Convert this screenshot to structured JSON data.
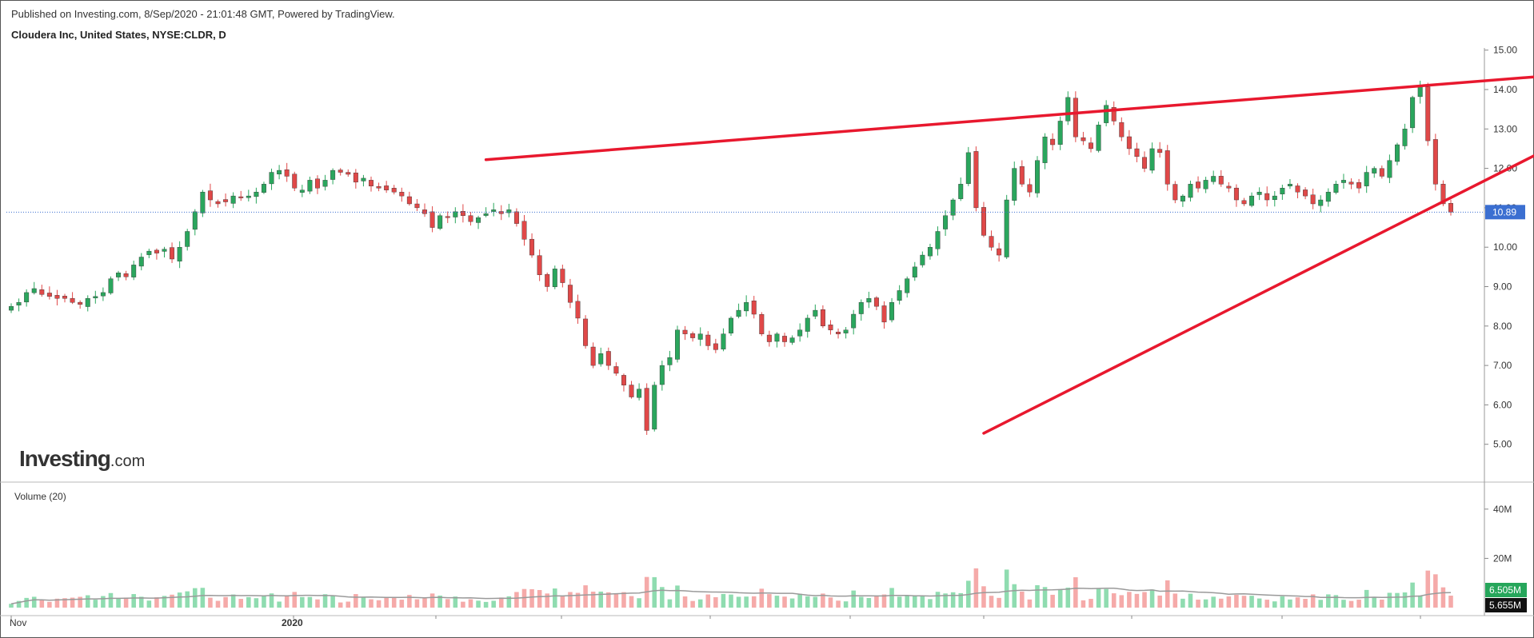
{
  "header": {
    "published": "Published on Investing.com, 8/Sep/2020 - 21:01:48 GMT, Powered by TradingView.",
    "symbol": "Cloudera Inc, United States, NYSE:CLDR, D"
  },
  "logo": {
    "bold": "Investing",
    "suffix": ".com"
  },
  "chart_data": [
    {
      "type": "candlestick",
      "title": "Cloudera Inc, United States, NYSE:CLDR, D",
      "price_axis": {
        "ticks": [
          "15.00",
          "14.00",
          "13.00",
          "12.00",
          "11.00",
          "10.00",
          "9.00",
          "8.00",
          "7.00",
          "6.00",
          "5.00"
        ],
        "ylim": [
          4.2,
          15.6
        ],
        "position": "right"
      },
      "last_price": {
        "value": 10.89,
        "label": "10.89",
        "color": "#3b6fd1"
      },
      "time_axis": {
        "labels": [
          "Nov",
          "2020"
        ]
      },
      "colors": {
        "up": "#2aa65d",
        "down": "#e04848",
        "trendline": "#e8182e"
      },
      "trendlines": [
        {
          "name": "upper",
          "points": [
            [
              62,
              12.22
            ],
            [
              284,
              14.32
            ]
          ]
        },
        {
          "name": "lower",
          "points": [
            [
              127,
              5.28
            ],
            [
              284,
              12.32
            ]
          ]
        }
      ],
      "closes": [
        8.5,
        8.6,
        8.85,
        8.95,
        8.8,
        8.75,
        8.7,
        8.7,
        8.6,
        8.55,
        8.7,
        8.75,
        8.85,
        9.2,
        9.35,
        9.25,
        9.55,
        9.75,
        9.9,
        9.85,
        9.95,
        9.7,
        10,
        10.4,
        10.9,
        11.4,
        11.2,
        11.1,
        11.15,
        11.3,
        11.25,
        11.3,
        11.4,
        11.6,
        11.9,
        11.95,
        11.8,
        11.5,
        11.45,
        11.7,
        11.5,
        11.7,
        11.95,
        11.9,
        11.85,
        11.65,
        11.75,
        11.55,
        11.5,
        11.45,
        11.4,
        11.3,
        11.1,
        11,
        10.85,
        10.5,
        10.8,
        10.75,
        10.9,
        10.8,
        10.65,
        10.75,
        10.85,
        10.95,
        10.85,
        10.95,
        10.6,
        10.2,
        9.8,
        9.3,
        9.0,
        9.45,
        9.1,
        8.6,
        8.2,
        7.5,
        7.0,
        7.3,
        7.0,
        6.8,
        6.5,
        6.2,
        6.4,
        5.35,
        6.5,
        7.0,
        7.2,
        7.9,
        7.8,
        7.7,
        7.8,
        7.5,
        7.4,
        7.8,
        8.2,
        8.4,
        8.6,
        8.3,
        7.8,
        7.6,
        7.8,
        7.6,
        7.7,
        7.9,
        8.2,
        8.4,
        8.0,
        7.9,
        7.8,
        7.9,
        8.3,
        8.6,
        8.7,
        8.5,
        8.1,
        8.6,
        8.9,
        9.2,
        9.5,
        9.8,
        10.0,
        10.4,
        10.8,
        11.2,
        11.6,
        12.4,
        11.0,
        10.3,
        10.0,
        9.8,
        11.2,
        12.0,
        11.6,
        11.4,
        12.2,
        12.8,
        12.6,
        13.2,
        13.8,
        12.8,
        12.7,
        12.5,
        13.1,
        13.6,
        13.2,
        12.8,
        12.5,
        12.3,
        12.0,
        12.5,
        12.4,
        11.6,
        11.2,
        11.3,
        11.6,
        11.5,
        11.7,
        11.8,
        11.6,
        11.5,
        11.2,
        11.1,
        11.3,
        11.4,
        11.2,
        11.3,
        11.5,
        11.6,
        11.4,
        11.3,
        11.1,
        11.2,
        11.4,
        11.6,
        11.7,
        11.6,
        11.5,
        11.9,
        12.0,
        11.8,
        12.2,
        12.6,
        13.0,
        13.8,
        14.1,
        12.7,
        11.6,
        11.1,
        10.89
      ],
      "volume_series": {
        "name": "Volume (20)",
        "axis_ticks": [
          "40M",
          "20M"
        ],
        "ylim": [
          0,
          48
        ],
        "last_labels": [
          {
            "label": "6.505M",
            "color": "#26a65b"
          },
          {
            "label": "5.655M",
            "color": "#111111"
          }
        ]
      }
    }
  ]
}
